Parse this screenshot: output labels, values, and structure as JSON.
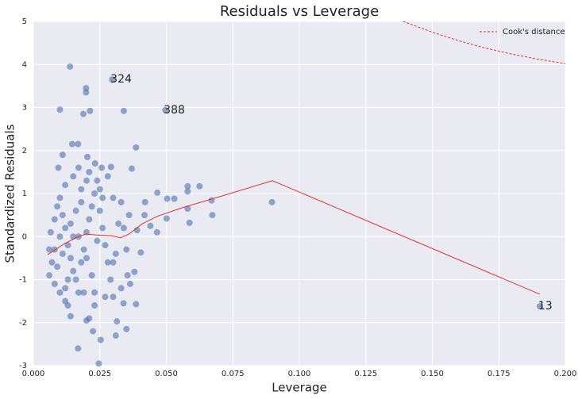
{
  "chart_data": {
    "type": "scatter",
    "title": "Residuals vs Leverage",
    "xlabel": "Leverage",
    "ylabel": "Standardized Residuals",
    "xlim": [
      0,
      0.2
    ],
    "ylim": [
      -3,
      5
    ],
    "xticks": [
      {
        "value": 0,
        "label": "0.000"
      },
      {
        "value": 0.025,
        "label": "0.025"
      },
      {
        "value": 0.05,
        "label": "0.050"
      },
      {
        "value": 0.075,
        "label": "0.075"
      },
      {
        "value": 0.1,
        "label": "0.100"
      },
      {
        "value": 0.125,
        "label": "0.125"
      },
      {
        "value": 0.15,
        "label": "0.150"
      },
      {
        "value": 0.175,
        "label": "0.175"
      },
      {
        "value": 0.2,
        "label": "0.200"
      }
    ],
    "yticks": [
      -3,
      -2,
      -1,
      0,
      1,
      2,
      3,
      4,
      5
    ],
    "grid": true,
    "color": "#4c72b0",
    "x": [
      0.0138,
      0.0198,
      0.0198,
      0.0296,
      0.0496,
      0.01,
      0.0188,
      0.0213,
      0.034,
      0.0386,
      0.0146,
      0.0168,
      0.011,
      0.0203,
      0.0094,
      0.0232,
      0.0257,
      0.0292,
      0.037,
      0.0466,
      0.0503,
      0.053,
      0.058,
      0.058,
      0.0625,
      0.067,
      0.0673,
      0.0587,
      0.0501,
      0.0465,
      0.0418,
      0.042,
      0.0404,
      0.038,
      0.0386,
      0.0364,
      0.0354,
      0.0339,
      0.035,
      0.0314,
      0.031,
      0.0253,
      0.0246,
      0.0168,
      0.02,
      0.0224,
      0.021,
      0.014,
      0.013,
      0.012,
      0.01,
      0.008,
      0.006,
      0.007,
      0.006,
      0.0065,
      0.008,
      0.009,
      0.01,
      0.011,
      0.012,
      0.013,
      0.014,
      0.015,
      0.016,
      0.017,
      0.018,
      0.019,
      0.02,
      0.021,
      0.022,
      0.023,
      0.024,
      0.025,
      0.026,
      0.027,
      0.028,
      0.029,
      0.03,
      0.031,
      0.032,
      0.033,
      0.034,
      0.035,
      0.036,
      0.012,
      0.015,
      0.018,
      0.021,
      0.025,
      0.028,
      0.03,
      0.016,
      0.014,
      0.017,
      0.011,
      0.009,
      0.013,
      0.019,
      0.023,
      0.027,
      0.022,
      0.018,
      0.02,
      0.024,
      0.01,
      0.015,
      0.026,
      0.03,
      0.033,
      0.012,
      0.008,
      0.017,
      0.02,
      0.023,
      0.1904,
      0.0897,
      0.058,
      0.044,
      0.039
    ],
    "values": [
      3.95,
      3.45,
      3.35,
      3.65,
      2.94,
      2.95,
      2.85,
      2.92,
      2.92,
      2.07,
      2.15,
      2.15,
      1.9,
      1.85,
      1.6,
      1.7,
      1.6,
      1.62,
      1.58,
      1.02,
      0.88,
      0.88,
      1.17,
      1.05,
      1.17,
      0.84,
      0.5,
      0.32,
      0.42,
      0.1,
      0.5,
      0.8,
      -0.37,
      -0.82,
      -1.57,
      -1.1,
      -0.9,
      -1.55,
      -2.15,
      -1.97,
      -2.3,
      -2.4,
      -2.95,
      -2.6,
      -1.95,
      -2.2,
      -1.9,
      -1.85,
      -1.6,
      -1.5,
      -1.3,
      -1.1,
      -0.9,
      -0.6,
      -0.3,
      0.1,
      0.4,
      0.7,
      0.9,
      0.5,
      0.2,
      -0.2,
      -0.5,
      -0.8,
      -1.0,
      -1.3,
      -0.6,
      -0.3,
      0.1,
      0.4,
      0.7,
      1.0,
      1.3,
      0.6,
      0.2,
      -0.2,
      -0.6,
      -1.0,
      -1.4,
      -0.4,
      0.3,
      0.8,
      0.2,
      -0.3,
      0.5,
      1.2,
      1.4,
      1.1,
      1.5,
      1.1,
      1.4,
      0.9,
      0.6,
      0.3,
      0.0,
      -0.4,
      -0.7,
      -1.0,
      -1.3,
      -1.6,
      -1.4,
      -0.9,
      0.8,
      -0.5,
      -0.1,
      0.0,
      0.0,
      0.9,
      -0.6,
      -1.2,
      -1.2,
      -0.3,
      1.6,
      1.3,
      -1.3,
      -1.62,
      0.8,
      0.65,
      0.25,
      0.15
    ],
    "lowess": {
      "color": "#e8302a",
      "x": [
        0.0054,
        0.0113,
        0.0158,
        0.0197,
        0.0233,
        0.0293,
        0.0328,
        0.036,
        0.041,
        0.047,
        0.056,
        0.068,
        0.0899,
        0.1904
      ],
      "values": [
        -0.42,
        -0.18,
        -0.03,
        0.06,
        0.04,
        0.02,
        -0.03,
        0.06,
        0.3,
        0.48,
        0.67,
        0.89,
        1.3,
        -1.34
      ]
    },
    "cooks": {
      "name": "Cook's distance",
      "color": "#e8302a",
      "dashed": true,
      "x": [
        0.139,
        0.15,
        0.16,
        0.17,
        0.18,
        0.19,
        0.2
      ],
      "values": [
        5,
        4.75,
        4.55,
        4.38,
        4.24,
        4.12,
        4.02
      ]
    },
    "legend": "upper right",
    "annotations": [
      {
        "text": "324",
        "x": 0.0296,
        "y": 3.65
      },
      {
        "text": "388",
        "x": 0.0496,
        "y": 2.94
      },
      {
        "text": "13",
        "x": 0.1904,
        "y": -1.62
      }
    ]
  }
}
